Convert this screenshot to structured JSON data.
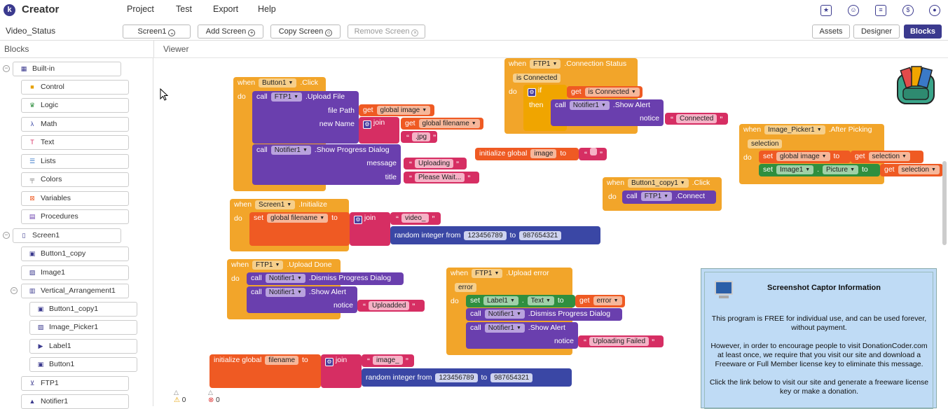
{
  "app": {
    "logo_letter": "k",
    "title": "Creator"
  },
  "menu": [
    "Project",
    "Test",
    "Export",
    "Help"
  ],
  "top_icons": [
    "gallery-star-icon",
    "gift-icon",
    "library-icon",
    "dollar-icon",
    "account-icon"
  ],
  "toolbar": {
    "project_name": "Video_Status",
    "screen_select": "Screen1",
    "add_screen": "Add Screen",
    "copy_screen": "Copy Screen",
    "remove_screen": "Remove Screen",
    "assets": "Assets",
    "designer": "Designer",
    "blocks": "Blocks"
  },
  "panels": {
    "blocks": "Blocks",
    "viewer": "Viewer"
  },
  "builtin": {
    "label": "Built-in",
    "items": [
      "Control",
      "Logic",
      "Math",
      "Text",
      "Lists",
      "Colors",
      "Variables",
      "Procedures"
    ]
  },
  "screen": {
    "label": "Screen1",
    "items": [
      "Button1_copy",
      "Image1",
      "Vertical_Arrangement1",
      "Button1_copy1",
      "Image_Picker1",
      "Label1",
      "Button1",
      "FTP1",
      "Notifier1"
    ]
  },
  "blocks": {
    "b1": {
      "when": "when",
      "comp": "Button1",
      "event": ".Click",
      "do": "do",
      "call": "call",
      "ftp": "FTP1",
      "method": ".Upload File",
      "file_path": "file Path",
      "get": "get",
      "gimage": "global image",
      "new_name": "new Name",
      "join": "join",
      "gfilename": "global filename",
      "jpg": ".jpg",
      "notifier": "Notifier1",
      "progress": ".Show Progress Dialog",
      "message": "message",
      "uploading": "Uploading",
      "title": "title",
      "please_wait": "Please Wait..."
    },
    "b2": {
      "when": "when",
      "comp": "FTP1",
      "event": ".Connection Status",
      "param": "is Connected",
      "do": "do",
      "if": "if",
      "get": "get",
      "var": "is Connected",
      "then": "then",
      "call": "call",
      "notifier": "Notifier1",
      "method": ".Show Alert",
      "notice": "notice",
      "text": "Connected"
    },
    "b3": {
      "init": "initialize global",
      "name": "image",
      "to": "to",
      "text": ""
    },
    "b4": {
      "when": "when",
      "comp": "Image_Picker1",
      "event": ".After Picking",
      "param": "selection",
      "do": "do",
      "set": "set",
      "var": "global image",
      "to": "to",
      "get": "get",
      "sel": "selection",
      "comp2": "Image1",
      "prop": "Picture"
    },
    "b5": {
      "when": "when",
      "comp": "Button1_copy1",
      "event": ".Click",
      "do": "do",
      "call": "call",
      "ftp": "FTP1",
      "method": ".Connect"
    },
    "b6": {
      "when": "when",
      "comp": "Screen1",
      "event": ".Initialize",
      "do": "do",
      "set": "set",
      "var": "global filename",
      "to": "to",
      "join": "join",
      "text": "video_",
      "random": "random integer from",
      "from": "123456789",
      "to2": "to",
      "max": "987654321"
    },
    "b7": {
      "when": "when",
      "comp": "FTP1",
      "event": ".Upload Done",
      "do": "do",
      "call": "call",
      "notifier": "Notifier1",
      "dismiss": ".Dismiss Progress Dialog",
      "alert": ".Show Alert",
      "notice": "notice",
      "text": "Uploadded"
    },
    "b8": {
      "when": "when",
      "comp": "FTP1",
      "event": ".Upload error",
      "param": "error",
      "do": "do",
      "set": "set",
      "label": "Label1",
      "prop": "Text",
      "to": "to",
      "get": "get",
      "err": "error",
      "call": "call",
      "notifier": "Notifier1",
      "dismiss": ".Dismiss Progress Dialog",
      "alert": ".Show Alert",
      "notice": "notice",
      "text": "Uploading Failed"
    },
    "b9": {
      "init": "initialize global",
      "name": "filename",
      "to": "to",
      "join": "join",
      "text": "image_",
      "random": "random integer from",
      "from": "123456789",
      "to2": "to",
      "max": "987654321"
    }
  },
  "status": {
    "warnings": "0",
    "errors": "0"
  },
  "captor": {
    "title": "Screenshot Captor Information",
    "p1": "This program is FREE for individual use, and can be used forever, without payment.",
    "p2": "However, in order to encourage people to visit DonationCoder.com at least once, we require that you visit our site and download a Freeware or Full Member license key to eliminate this message.",
    "p3": "Click the link below to visit our site and generate a freeware license key or make a donation."
  }
}
